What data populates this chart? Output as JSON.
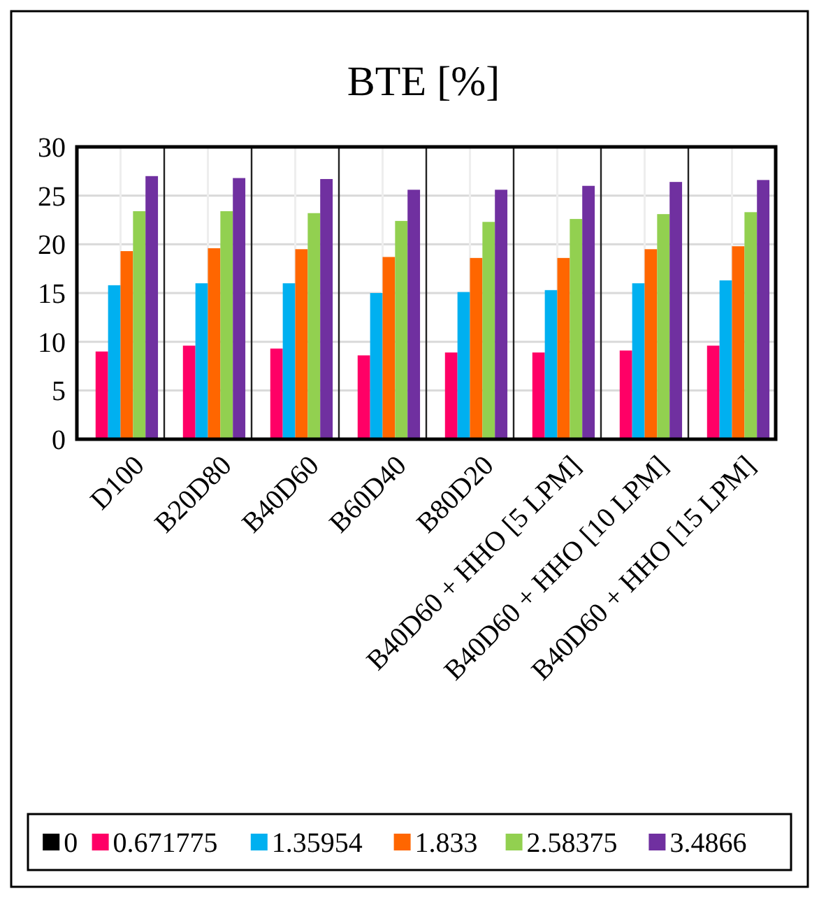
{
  "chart_data": {
    "type": "bar",
    "title": "BTE [%]",
    "categories": [
      "D100",
      "B20D80",
      "B40D60",
      "B60D40",
      "B80D20",
      "B40D60 + HHO [5 LPM]",
      "B40D60 + HHO [10 LPM]",
      "B40D60 + HHO [15 LPM]"
    ],
    "series": [
      {
        "name": "0",
        "color": "#000000",
        "values": [
          0,
          0,
          0,
          0,
          0,
          0,
          0,
          0
        ]
      },
      {
        "name": "0.671775",
        "color": "#ff0066",
        "values": [
          9.0,
          9.6,
          9.3,
          8.6,
          8.9,
          8.9,
          9.1,
          9.6
        ]
      },
      {
        "name": "1.35954",
        "color": "#00b0f0",
        "values": [
          15.8,
          16.0,
          16.0,
          15.0,
          15.1,
          15.3,
          16.0,
          16.3
        ]
      },
      {
        "name": "1.833",
        "color": "#ff6600",
        "values": [
          19.3,
          19.6,
          19.5,
          18.7,
          18.6,
          18.6,
          19.5,
          19.8
        ]
      },
      {
        "name": "2.58375",
        "color": "#92d050",
        "values": [
          23.4,
          23.4,
          23.2,
          22.4,
          22.3,
          22.6,
          23.1,
          23.3
        ]
      },
      {
        "name": "3.4866",
        "color": "#7030a0",
        "values": [
          27.0,
          26.8,
          26.7,
          25.6,
          25.6,
          26.0,
          26.4,
          26.6
        ]
      }
    ],
    "ylim": [
      0,
      30
    ],
    "yticks": [
      0,
      5,
      10,
      15,
      20,
      25,
      30
    ],
    "grid": true,
    "legend": "bottom"
  }
}
